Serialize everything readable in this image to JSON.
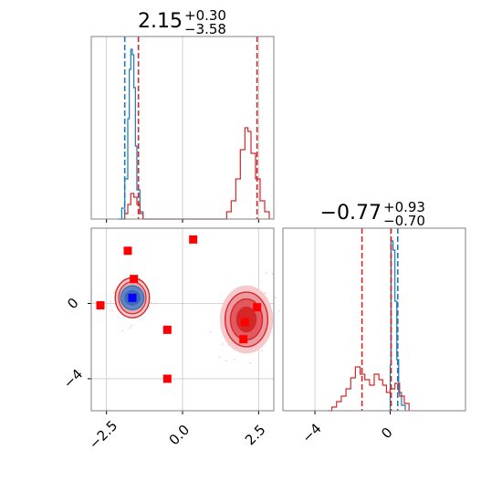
{
  "chart_data": [
    {
      "type": "histogram",
      "panel": "marginal-x",
      "title": {
        "main": "2.15",
        "sup": "+0.30",
        "sub": "−3.58"
      },
      "xlim": [
        -3.0,
        3.0
      ],
      "grid": true,
      "series": [
        {
          "color": "#1f77b4",
          "bins": [
            [
              -2.1,
              0.0
            ],
            [
              -2.0,
              0.06
            ],
            [
              -1.9,
              0.22
            ],
            [
              -1.8,
              0.55
            ],
            [
              -1.75,
              0.82
            ],
            [
              -1.7,
              0.93
            ],
            [
              -1.65,
              0.9
            ],
            [
              -1.6,
              0.72
            ],
            [
              -1.55,
              0.4
            ],
            [
              -1.5,
              0.16
            ],
            [
              -1.4,
              0.04
            ],
            [
              -1.3,
              0.0
            ]
          ]
        },
        {
          "color": "#d62728",
          "bins": [
            [
              -2.0,
              0.0
            ],
            [
              -1.9,
              0.03
            ],
            [
              -1.8,
              0.08
            ],
            [
              -1.7,
              0.14
            ],
            [
              -1.6,
              0.12
            ],
            [
              -1.5,
              0.08
            ],
            [
              -1.4,
              0.03
            ],
            [
              -1.3,
              0.0
            ],
            [
              1.3,
              0.0
            ],
            [
              1.45,
              0.04
            ],
            [
              1.6,
              0.1
            ],
            [
              1.75,
              0.22
            ],
            [
              1.9,
              0.38
            ],
            [
              2.05,
              0.5
            ],
            [
              2.15,
              0.48
            ],
            [
              2.25,
              0.36
            ],
            [
              2.4,
              0.22
            ],
            [
              2.55,
              0.1
            ],
            [
              2.7,
              0.04
            ],
            [
              2.85,
              0.0
            ]
          ]
        }
      ],
      "vlines": [
        {
          "x": -1.9,
          "color": "#1f77b4"
        },
        {
          "x": -1.45,
          "color": "#d62728"
        },
        {
          "x": 2.45,
          "color": "#d62728"
        }
      ]
    },
    {
      "type": "contour-scatter",
      "panel": "joint",
      "xlim": [
        -3.0,
        3.0
      ],
      "ylim": [
        -5.7,
        4.0
      ],
      "xticks": [
        {
          "v": -2.5,
          "label": "−2.5"
        },
        {
          "v": 0.0,
          "label": "0.0"
        },
        {
          "v": 2.5,
          "label": "2.5"
        }
      ],
      "yticks": [
        {
          "v": 0,
          "label": "0"
        },
        {
          "v": -4,
          "label": "−4"
        }
      ],
      "blue_cluster": {
        "cx": -1.65,
        "cy": 0.3,
        "rx": 0.45,
        "ry": 0.85
      },
      "red_cluster": {
        "cx": 2.1,
        "cy": -0.85,
        "rx": 0.7,
        "ry": 1.45
      },
      "red_points": [
        [
          -2.7,
          -0.1
        ],
        [
          -1.8,
          2.8
        ],
        [
          -1.6,
          1.3
        ],
        [
          -0.5,
          -1.4
        ],
        [
          -0.5,
          -4.0
        ],
        [
          0.35,
          3.4
        ],
        [
          2.45,
          -0.2
        ],
        [
          2.05,
          -1.0
        ],
        [
          2.0,
          -1.9
        ]
      ],
      "blue_points": [
        [
          -1.65,
          0.3
        ]
      ]
    },
    {
      "type": "histogram",
      "panel": "marginal-y",
      "title": {
        "main": "−0.77",
        "sup": "+0.93",
        "sub": "−0.70"
      },
      "xlim": [
        -5.7,
        4.0
      ],
      "xticks": [
        {
          "v": -4,
          "label": "−4"
        },
        {
          "v": 0,
          "label": "0"
        }
      ],
      "grid": true,
      "series": [
        {
          "color": "#1f77b4",
          "bins": [
            [
              -0.1,
              0.0
            ],
            [
              0.0,
              0.25
            ],
            [
              0.05,
              0.93
            ],
            [
              0.15,
              0.88
            ],
            [
              0.25,
              0.6
            ],
            [
              0.35,
              0.28
            ],
            [
              0.45,
              0.1
            ],
            [
              0.6,
              0.03
            ],
            [
              0.8,
              0.0
            ]
          ]
        },
        {
          "color": "#d62728",
          "bins": [
            [
              -3.3,
              0.0
            ],
            [
              -3.1,
              0.02
            ],
            [
              -2.85,
              0.05
            ],
            [
              -2.6,
              0.08
            ],
            [
              -2.35,
              0.12
            ],
            [
              -2.1,
              0.18
            ],
            [
              -1.85,
              0.24
            ],
            [
              -1.6,
              0.2
            ],
            [
              -1.35,
              0.17
            ],
            [
              -1.1,
              0.14
            ],
            [
              -0.85,
              0.2
            ],
            [
              -0.6,
              0.17
            ],
            [
              -0.4,
              0.14
            ],
            [
              -0.2,
              0.1
            ],
            [
              0.0,
              0.12
            ],
            [
              0.25,
              0.15
            ],
            [
              0.5,
              0.08
            ],
            [
              0.75,
              0.04
            ],
            [
              1.0,
              0.0
            ]
          ]
        }
      ],
      "vlines": [
        {
          "x": -1.5,
          "color": "#d62728"
        },
        {
          "x": 0.05,
          "color": "#d62728"
        },
        {
          "x": 0.4,
          "color": "#1f77b4"
        }
      ]
    }
  ]
}
